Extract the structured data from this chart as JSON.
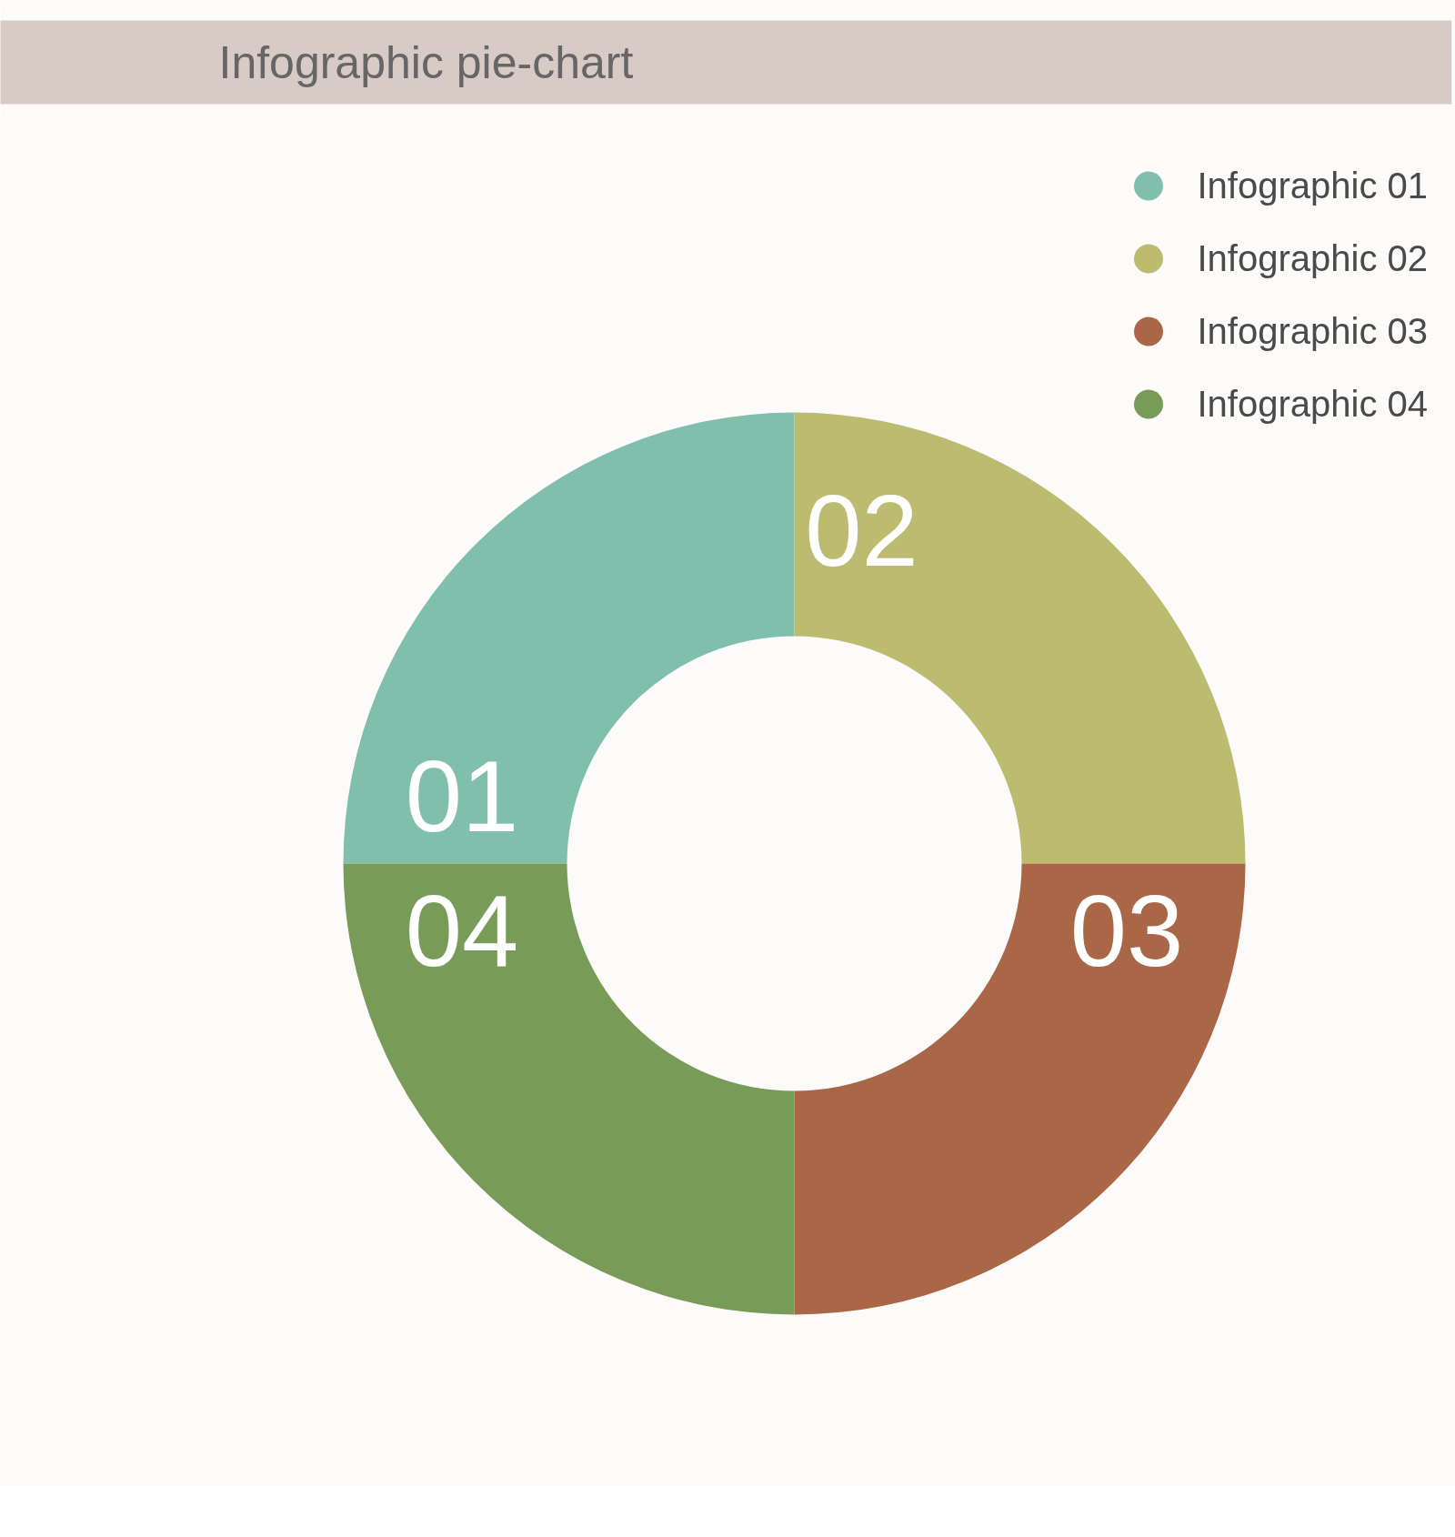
{
  "chart_data": {
    "type": "donut",
    "title": "Infographic pie-chart",
    "categories": [
      "Infographic 01",
      "Infographic 02",
      "Infographic 03",
      "Infographic 04"
    ],
    "values": [
      25,
      25,
      25,
      25
    ],
    "colors": [
      "#80bfab",
      "#bdbb6f",
      "#aa6747",
      "#789b58"
    ],
    "annotations": [
      "01",
      "02",
      "03",
      "04"
    ],
    "legend": "top right"
  }
}
